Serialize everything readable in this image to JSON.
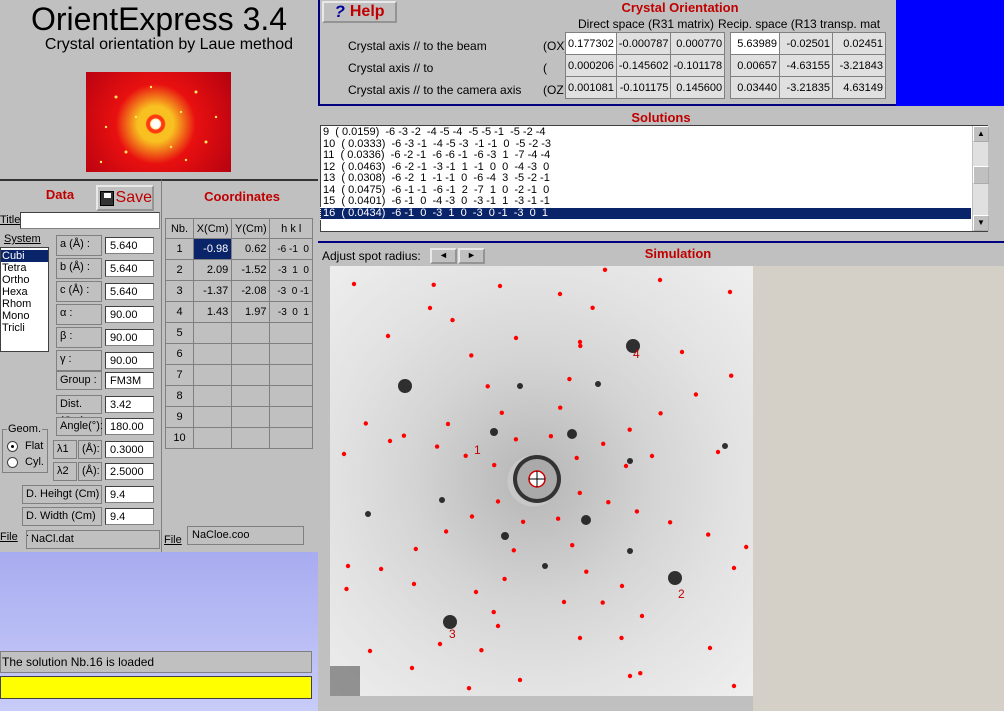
{
  "app": {
    "title": "OrientExpress 3.4",
    "subtitle": "Crystal orientation by Laue method"
  },
  "help": {
    "label": "Help",
    "icon": "question-mark-icon"
  },
  "crystal_orientation": {
    "title": "Crystal Orientation",
    "direct_header": "Direct space (R31 matrix)",
    "recip_header": "Recip. space (R13 transp. mat",
    "rows": [
      {
        "label": "Crystal axis // to the beam",
        "axis": "(OX)"
      },
      {
        "label": "Crystal axis // to",
        "axis": "("
      },
      {
        "label": "Crystal axis // to the camera axis",
        "axis": "(OZ"
      }
    ],
    "direct": [
      [
        "0.177302",
        "-0.000787",
        "0.000770"
      ],
      [
        "0.000206",
        "-0.145602",
        "-0.101178"
      ],
      [
        "0.001081",
        "-0.101175",
        "0.145600"
      ]
    ],
    "recip": [
      [
        "5.63989",
        "-0.02501",
        "0.02451"
      ],
      [
        "0.00657",
        "-4.63155",
        "-3.21843"
      ],
      [
        "0.03440",
        "-3.21835",
        "4.63149"
      ]
    ]
  },
  "solutions": {
    "title": "Solutions",
    "lines": [
      "9  ( 0.0159)  -6 -3 -2  -4 -5 -4  -5 -5 -1  -5 -2 -4",
      "10  ( 0.0333)  -6 -3 -1  -4 -5 -3  -1 -1  0  -5 -2 -3",
      "11  ( 0.0336)  -6 -2 -1  -6 -6 -1  -6 -3  1  -7 -4 -4",
      "12  ( 0.0463)  -6 -2 -1  -3 -1  1  -1  0  0  -4 -3  0",
      "13  ( 0.0308)  -6 -2  1  -1 -1  0  -6 -4  3  -5 -2 -1",
      "14  ( 0.0475)  -6 -1 -1  -6 -1  2  -7  1  0  -2 -1  0",
      "15  ( 0.0401)  -6 -1  0  -4 -3  0  -3 -1  1  -3 -1 -1",
      "16  ( 0.0434)  -6 -1  0  -3  1  0  -3  0 -1  -3  0  1"
    ],
    "selected_index": 7
  },
  "simulation": {
    "title": "Simulation",
    "adjust_label": "Adjust spot radius:"
  },
  "spot_labels": [
    "1",
    "2",
    "3",
    "4"
  ],
  "data_panel": {
    "title": "Data",
    "save_label": "Save",
    "title_field_label": "Title",
    "title_value": "",
    "system_label": "System",
    "systems": [
      "Cubi",
      "Tetra",
      "Ortho",
      "Hexa",
      "Rhom",
      "Mono",
      "Tricli"
    ],
    "selected_system": 0,
    "params": [
      {
        "label": "a (Å) :",
        "value": "5.640"
      },
      {
        "label": "b (Å) :",
        "value": "5.640"
      },
      {
        "label": "c (Å) :",
        "value": "5.640"
      },
      {
        "label": "α :",
        "value": "90.00"
      },
      {
        "label": "β :",
        "value": "90.00"
      },
      {
        "label": "γ :",
        "value": "90.00"
      }
    ],
    "group_label": "Group :",
    "group_value": "FM3M",
    "dist_label": "Dist.(Cm)",
    "dist_value": "3.42",
    "angle_label": "Angle(°):",
    "angle_value": "180.00",
    "geom_label": "Geom.",
    "geom_options": [
      "Flat",
      "Cyl."
    ],
    "geom_selected": 0,
    "lambda1_label": "λ1",
    "lambda1_unit": "(Å):",
    "lambda1_value": "0.3000",
    "lambda2_label": "λ2",
    "lambda2_unit": "(Å):",
    "lambda2_value": "2.5000",
    "dheight_label": "D. Heihgt  (Cm)",
    "dheight_value": "9.4",
    "dwidth_label": "D. Width (Cm) :",
    "dwidth_value": "9.4",
    "file_label": "File",
    "file_value": "NaCl.dat"
  },
  "coordinates": {
    "title": "Coordinates",
    "headers": [
      "Nb.",
      "X(Cm)",
      "Y(Cm)",
      "h  k  l"
    ],
    "rows": [
      [
        "1",
        "-0.98",
        "0.62",
        "-6 -1  0"
      ],
      [
        "2",
        "2.09",
        "-1.52",
        "-3  1  0"
      ],
      [
        "3",
        "-1.37",
        "-2.08",
        "-3  0 -1"
      ],
      [
        "4",
        "1.43",
        "1.97",
        "-3  0  1"
      ],
      [
        "5",
        "",
        "",
        ""
      ],
      [
        "6",
        "",
        "",
        ""
      ],
      [
        "7",
        "",
        "",
        ""
      ],
      [
        "8",
        "",
        "",
        ""
      ],
      [
        "9",
        "",
        "",
        ""
      ],
      [
        "10",
        "",
        "",
        ""
      ]
    ],
    "file_label": "File",
    "file_value": "NaCloe.coo"
  },
  "status": {
    "message": "The solution Nb.16 is loaded"
  },
  "colors": {
    "accent_red": "#c00000",
    "selection": "#0a246a",
    "status_yellow": "#ffff00",
    "top_blue": "#0000ff",
    "spot_red": "#ff0000"
  }
}
